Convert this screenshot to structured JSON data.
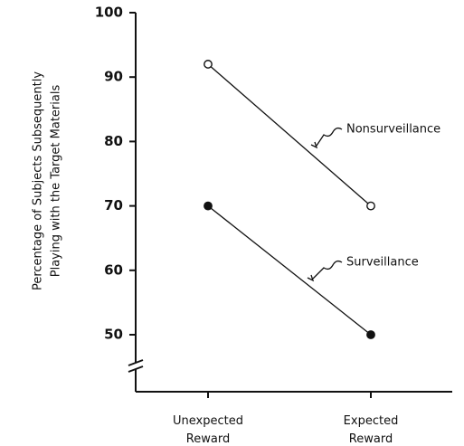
{
  "chart_data": {
    "type": "line",
    "ylabel": [
      "Percentage of Subjects Subsequently",
      "Playing with the Target Materials"
    ],
    "categories": [
      "Unexpected Reward",
      "Expected Reward"
    ],
    "series": [
      {
        "name": "Nonsurveillance",
        "color": "#111111",
        "marker_fill": "#ffffff",
        "values": [
          92,
          70
        ]
      },
      {
        "name": "Surveillance",
        "color": "#111111",
        "marker_fill": "#111111",
        "values": [
          70,
          50
        ]
      }
    ],
    "ylim": [
      50,
      100
    ],
    "yticks": [
      50,
      60,
      70,
      80,
      90,
      100
    ],
    "axis_break": true
  }
}
